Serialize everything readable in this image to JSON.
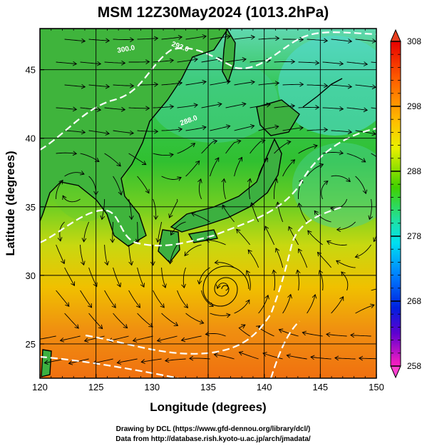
{
  "title": "MSM 12Z30May2024 (1013.2hPa)",
  "xlabel": "Longitude (degrees)",
  "ylabel": "Latitude  (degrees)",
  "x_ticks": [
    "120",
    "125",
    "130",
    "135",
    "140",
    "145",
    "150"
  ],
  "y_ticks": [
    "25",
    "30",
    "35",
    "40",
    "45"
  ],
  "colorbar": {
    "min": 258,
    "max": 308,
    "tick_labels": [
      "308",
      "298",
      "288",
      "278",
      "268",
      "258"
    ]
  },
  "credits": {
    "line1": "Drawing by DCL (https://www.gfd-dennou.org/library/dcl/)",
    "line2": "Data from http://database.rish.kyoto-u.ac.jp/arch/jmadata/"
  },
  "contour_labels": [
    "300.0",
    "292.0",
    "288.0"
  ],
  "colors": {
    "warm": "#ff8000",
    "mid": "#40c040",
    "cool": "#40e0c0",
    "contour": "#ffffff"
  },
  "chart_data": {
    "type": "heatmap",
    "xlim": [
      120,
      150
    ],
    "ylim": [
      22.5,
      48
    ],
    "legend": "right",
    "grid": true
  }
}
